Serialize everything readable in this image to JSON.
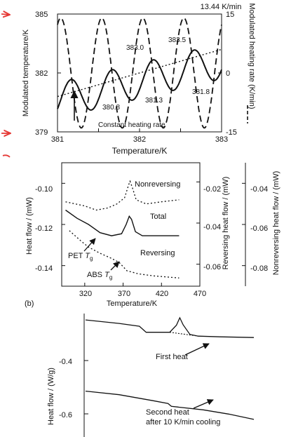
{
  "annotation_marks": {
    "color": "#e53935"
  },
  "chart_data": [
    {
      "type": "line",
      "title": "13.44 K/min",
      "xlabel": "Temperature/K",
      "ylabel": "Modulated temperature/K",
      "y2label": "Modulated heating rate (K/min)",
      "xlim": [
        381,
        383
      ],
      "ylim": [
        379,
        385
      ],
      "y2lim": [
        -15,
        15
      ],
      "x_ticks": [
        "381",
        "382",
        "383"
      ],
      "y_ticks": [
        "379",
        "382",
        "385"
      ],
      "y2_ticks": [
        "-15",
        "0",
        "15"
      ],
      "series": [
        {
          "name": "modulated-temperature",
          "style": "solid",
          "mean_start": 381,
          "mean_end": 383,
          "amplitude": 0.9,
          "period": 0.5
        },
        {
          "name": "modulated-heating-rate",
          "style": "dashed",
          "amplitude": 14,
          "period": 0.5,
          "axis": "right"
        },
        {
          "name": "underlying-temperature",
          "style": "dotted",
          "from": [
            381,
            380.8
          ],
          "to": [
            383,
            383.2
          ]
        }
      ],
      "annotations": [
        {
          "text": "383.0",
          "x": 381.98,
          "y": 383.5
        },
        {
          "text": "383.5",
          "x": 382.5,
          "y": 383.9
        },
        {
          "text": "380.8",
          "x": 381.5,
          "y": 380.4
        },
        {
          "text": "381.3",
          "x": 382.08,
          "y": 380.8
        },
        {
          "text": "381.8",
          "x": 382.62,
          "y": 381.2
        },
        {
          "text": "Constant heating rate",
          "x": 381.35,
          "y": 379.5
        }
      ]
    },
    {
      "type": "line",
      "panel_label": "(b)",
      "xlabel": "Temperature/K",
      "ylabel": "Heat flow / (mW)",
      "y2label": "Reversing heat flow / (mW)",
      "y3label": "Nonreversing heat flow / (mW)",
      "xlim": [
        290,
        470
      ],
      "ylim": [
        -0.15,
        -0.09
      ],
      "x_ticks": [
        "320",
        "370",
        "420",
        "470"
      ],
      "y_ticks": [
        "-0.10",
        "-0.12",
        "-0.14"
      ],
      "y2_ticks": [
        "-0.02",
        "-0.04",
        "-0.06"
      ],
      "y3_ticks": [
        "-0.04",
        "-0.06",
        "-0.08"
      ],
      "series": [
        {
          "name": "Nonreversing",
          "style": "dotted",
          "x": [
            295,
            320,
            335,
            350,
            362,
            372,
            377,
            379,
            382,
            387,
            400,
            420,
            443
          ],
          "y": [
            -0.109,
            -0.111,
            -0.113,
            -0.112,
            -0.11,
            -0.107,
            -0.101,
            -0.099,
            -0.102,
            -0.108,
            -0.11,
            -0.109,
            -0.108
          ]
        },
        {
          "name": "Total",
          "style": "solid",
          "x": [
            295,
            310,
            325,
            340,
            355,
            368,
            374,
            378,
            381,
            386,
            395,
            420,
            443
          ],
          "y": [
            -0.113,
            -0.117,
            -0.12,
            -0.124,
            -0.1255,
            -0.1245,
            -0.12,
            -0.116,
            -0.1175,
            -0.1235,
            -0.1255,
            -0.1255,
            -0.1255
          ]
        },
        {
          "name": "Reversing",
          "style": "dotted",
          "x": [
            300,
            315,
            325,
            340,
            355,
            365,
            375,
            390,
            410,
            443
          ],
          "y": [
            -0.123,
            -0.128,
            -0.131,
            -0.134,
            -0.1365,
            -0.1385,
            -0.1425,
            -0.144,
            -0.145,
            -0.146
          ]
        }
      ],
      "labels": [
        {
          "text": "Nonreversing",
          "x": 385,
          "y": -0.0985
        },
        {
          "text": "Total",
          "x": 398,
          "y": -0.115
        },
        {
          "text": "Reversing",
          "x": 388,
          "y": -0.1325
        },
        {
          "text": "PET",
          "sub": "g",
          "x": 296,
          "y": -0.1342
        },
        {
          "text": "ABS",
          "sub": "g",
          "x": 312,
          "y": -0.1465
        }
      ]
    },
    {
      "type": "line",
      "ylabel": "Heat flow / (W/g)",
      "ylim": [
        -0.65,
        -0.3
      ],
      "y_ticks": [
        "-0.4",
        "-0.6"
      ],
      "series": [
        {
          "name": "First heat",
          "style": "solid",
          "x": [
            0,
            0.2,
            0.32,
            0.36,
            0.5,
            0.54,
            0.56,
            0.58,
            0.62,
            0.67,
            0.8,
            1.0
          ],
          "y": [
            -0.318,
            -0.328,
            -0.336,
            -0.353,
            -0.353,
            -0.333,
            -0.312,
            -0.332,
            -0.359,
            -0.364,
            -0.366,
            -0.368
          ]
        },
        {
          "name": "Second heat after 10 K/min cooling",
          "style": "solid",
          "x": [
            0,
            0.2,
            0.4,
            0.49,
            0.51,
            0.7,
            0.85,
            1.0
          ],
          "y": [
            -0.52,
            -0.53,
            -0.547,
            -0.555,
            -0.563,
            -0.573,
            -0.585,
            -0.6
          ]
        }
      ],
      "labels": [
        {
          "text": "First heat"
        },
        {
          "text": "Second heat",
          "line2": "after 10 K/min cooling"
        }
      ]
    }
  ]
}
